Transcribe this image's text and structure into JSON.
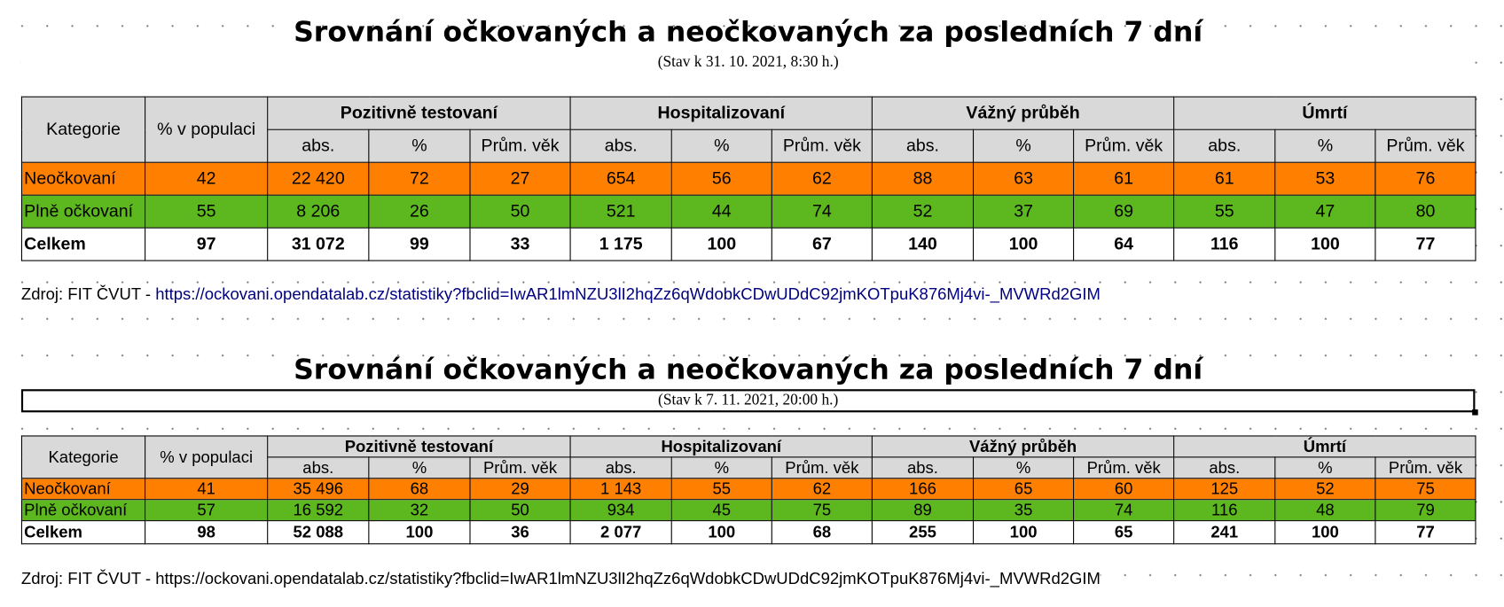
{
  "sections": [
    {
      "title": "Srovnání očkovaných a neočkovaných za posledních 7 dní",
      "subtitle": "(Stav k 31. 10. 2021, 8:30 h.)",
      "table": {
        "header": {
          "category": "Kategorie",
          "population": "% v populaci",
          "groups": [
            "Pozitivně testovaní",
            "Hospitalizovaní",
            "Vážný průběh",
            "Úmrtí"
          ],
          "subheaders": [
            "abs.",
            "%",
            "Prům. věk"
          ]
        },
        "rows": [
          [
            "Neočkovaní",
            "42",
            "22 420",
            "72",
            "27",
            "654",
            "56",
            "62",
            "88",
            "63",
            "61",
            "61",
            "53",
            "76"
          ],
          [
            "Plně očkovaní",
            "55",
            "8 206",
            "26",
            "50",
            "521",
            "44",
            "74",
            "52",
            "37",
            "69",
            "55",
            "47",
            "80"
          ],
          [
            "Celkem",
            "97",
            "31 072",
            "99",
            "33",
            "1 175",
            "100",
            "67",
            "140",
            "100",
            "64",
            "116",
            "100",
            "77"
          ]
        ]
      },
      "source": {
        "label": "Zdroj: FIT ČVUT - ",
        "url": "https://ockovani.opendatalab.cz/statistiky?fbclid=IwAR1lmNZU3lI2hqZz6qWdobkCDwUDdC92jmKOTpuK876Mj4vi-_MVWRd2GIM"
      }
    },
    {
      "title": "Srovnání očkovaných a neočkovaných za posledních 7 dní",
      "subtitle": "(Stav k 7. 11. 2021, 20:00 h.)",
      "table": {
        "header": {
          "category": "Kategorie",
          "population": "% v populaci",
          "groups": [
            "Pozitivně testovaní",
            "Hospitalizovaní",
            "Vážný průběh",
            "Úmrtí"
          ],
          "subheaders": [
            "abs.",
            "%",
            "Prům. věk"
          ]
        },
        "rows": [
          [
            "Neočkovaní",
            "41",
            "35 496",
            "68",
            "29",
            "1 143",
            "55",
            "62",
            "166",
            "65",
            "60",
            "125",
            "52",
            "75"
          ],
          [
            "Plně očkovaní",
            "57",
            "16 592",
            "32",
            "50",
            "934",
            "45",
            "75",
            "89",
            "35",
            "74",
            "116",
            "48",
            "79"
          ],
          [
            "Celkem",
            "98",
            "52 088",
            "100",
            "36",
            "2 077",
            "100",
            "68",
            "255",
            "100",
            "65",
            "241",
            "100",
            "77"
          ]
        ]
      },
      "source": {
        "label": "Zdroj: FIT ČVUT - ",
        "url": "https://ockovani.opendatalab.cz/statistiky?fbclid=IwAR1lmNZU3lI2hqZz6qWdobkCDwUDdC92jmKOTpuK876Mj4vi-_MVWRd2GIM"
      }
    }
  ]
}
